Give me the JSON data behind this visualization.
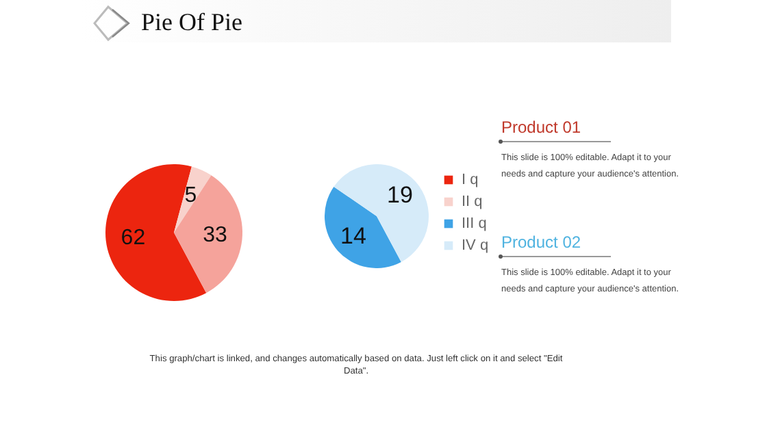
{
  "chart_data": [
    {
      "type": "pie",
      "title": "Pie Of Pie",
      "categories": [
        "I q",
        "II q",
        null
      ],
      "values": [
        62,
        5,
        33
      ],
      "colors": [
        "#ec250f",
        "#f8d2cc",
        "#f5a39b"
      ],
      "data_labels": true,
      "legend": "right",
      "annotations": [
        "This graph/chart is linked, and changes automatically based on data. Just left click on it and select \"Edit Data\"."
      ]
    },
    {
      "type": "pie",
      "categories": [
        "III q",
        "IV q"
      ],
      "values": [
        14,
        19
      ],
      "colors": [
        "#3fa3e6",
        "#d6ebf9"
      ],
      "data_labels": true,
      "legend": "right"
    },
    {
      "type": "other",
      "title": "Product 01",
      "color": "#c0392b",
      "annotations": [
        "This slide is 100% editable. Adapt it to your needs and capture your audience's attention."
      ]
    },
    {
      "type": "other",
      "title": "Product 02",
      "color": "#4fb3e0",
      "annotations": [
        "This slide is 100% editable. Adapt it to your needs and capture your audience's attention."
      ]
    }
  ]
}
